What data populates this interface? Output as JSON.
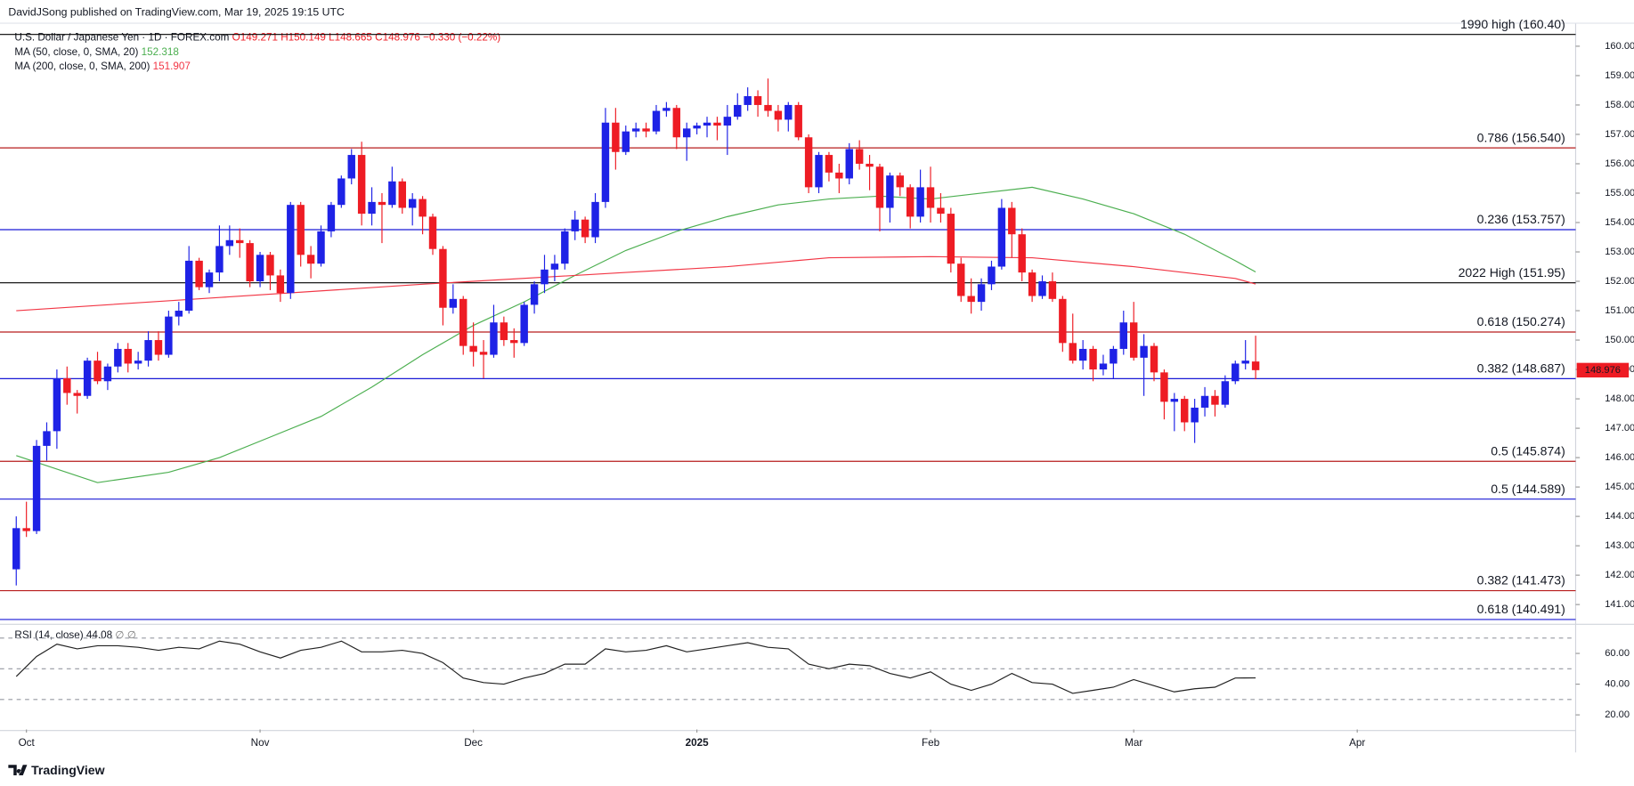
{
  "header": {
    "publisher": "DavidJSong published on TradingView.com, Mar 19, 2025 19:15 UTC"
  },
  "footer": {
    "brand": "TradingView"
  },
  "chart_data": [
    {
      "type": "candlestick",
      "title": "U.S. Dollar / Japanese Yen · 1D · FOREX.com",
      "ohlc_labels": [
        "O149.271",
        "H150.149",
        "L148.665",
        "C148.976"
      ],
      "change_label": "−0.330 (−0.22%)",
      "up_color": "#1e22e6",
      "down_color": "#ee1c24",
      "xlim": [
        -1.6,
        153.5
      ],
      "xticks": [
        {
          "value": 1,
          "label": "Oct"
        },
        {
          "value": 24,
          "label": "Nov"
        },
        {
          "value": 45,
          "label": "Dec"
        },
        {
          "value": 67,
          "label": "2025"
        },
        {
          "value": 90,
          "label": "Feb"
        },
        {
          "value": 110,
          "label": "Mar"
        },
        {
          "value": 132,
          "label": "Apr"
        }
      ],
      "ylim": [
        140.4,
        160.5
      ],
      "yticks": [
        {
          "value": 141,
          "label": "141.000"
        },
        {
          "value": 142,
          "label": "142.000"
        },
        {
          "value": 143,
          "label": "143.000"
        },
        {
          "value": 144,
          "label": "144.000"
        },
        {
          "value": 145,
          "label": "145.000"
        },
        {
          "value": 146,
          "label": "146.000"
        },
        {
          "value": 147,
          "label": "147.000"
        },
        {
          "value": 148,
          "label": "148.000"
        },
        {
          "value": 149,
          "label": "149.000"
        },
        {
          "value": 150,
          "label": "150.000"
        },
        {
          "value": 151,
          "label": "151.000"
        },
        {
          "value": 152,
          "label": "152.000"
        },
        {
          "value": 153,
          "label": "153.000"
        },
        {
          "value": 154,
          "label": "154.000"
        },
        {
          "value": 155,
          "label": "155.000"
        },
        {
          "value": 156,
          "label": "156.000"
        },
        {
          "value": 157,
          "label": "157.000"
        },
        {
          "value": 158,
          "label": "158.000"
        },
        {
          "value": 159,
          "label": "159.000"
        },
        {
          "value": 160,
          "label": "160.000"
        }
      ],
      "ohlc": [
        [
          142.2,
          144.0,
          141.65,
          143.6
        ],
        [
          143.6,
          144.5,
          143.3,
          143.5
        ],
        [
          143.5,
          146.6,
          143.4,
          146.4
        ],
        [
          146.4,
          147.2,
          145.9,
          146.9
        ],
        [
          146.9,
          149.0,
          146.3,
          148.7
        ],
        [
          148.7,
          149.1,
          147.8,
          148.2
        ],
        [
          148.2,
          148.3,
          147.5,
          148.1
        ],
        [
          148.1,
          149.4,
          148.0,
          149.3
        ],
        [
          149.3,
          149.6,
          148.5,
          148.6
        ],
        [
          148.6,
          149.2,
          148.3,
          149.1
        ],
        [
          149.1,
          149.9,
          148.9,
          149.7
        ],
        [
          149.7,
          149.9,
          148.9,
          149.2
        ],
        [
          149.2,
          149.6,
          149.0,
          149.3
        ],
        [
          149.3,
          150.3,
          149.1,
          150.0
        ],
        [
          150.0,
          150.3,
          149.3,
          149.5
        ],
        [
          149.5,
          151.0,
          149.4,
          150.8
        ],
        [
          150.8,
          151.3,
          150.5,
          151.0
        ],
        [
          151.0,
          153.2,
          150.9,
          152.7
        ],
        [
          152.7,
          152.8,
          151.7,
          151.8
        ],
        [
          151.8,
          152.4,
          151.6,
          152.3
        ],
        [
          152.3,
          153.9,
          152.0,
          153.2
        ],
        [
          153.2,
          153.9,
          152.9,
          153.4
        ],
        [
          153.4,
          153.8,
          152.8,
          153.3
        ],
        [
          153.3,
          153.4,
          151.8,
          152.0
        ],
        [
          152.0,
          153.0,
          151.8,
          152.9
        ],
        [
          152.9,
          153.0,
          151.7,
          152.2
        ],
        [
          152.2,
          152.4,
          151.3,
          151.6
        ],
        [
          151.6,
          154.7,
          151.4,
          154.6
        ],
        [
          154.6,
          154.7,
          152.5,
          152.9
        ],
        [
          152.9,
          153.2,
          152.1,
          152.6
        ],
        [
          152.6,
          153.9,
          152.5,
          153.7
        ],
        [
          153.7,
          154.7,
          153.5,
          154.6
        ],
        [
          154.6,
          155.6,
          154.5,
          155.5
        ],
        [
          155.5,
          156.5,
          155.3,
          156.3
        ],
        [
          156.3,
          156.75,
          153.9,
          154.3
        ],
        [
          154.3,
          155.2,
          153.9,
          154.7
        ],
        [
          154.7,
          155.0,
          153.3,
          154.6
        ],
        [
          154.6,
          155.9,
          154.5,
          155.4
        ],
        [
          155.4,
          155.5,
          154.3,
          154.5
        ],
        [
          154.5,
          155.0,
          153.9,
          154.8
        ],
        [
          154.8,
          154.9,
          153.6,
          154.2
        ],
        [
          154.2,
          154.3,
          152.9,
          153.1
        ],
        [
          153.1,
          153.2,
          150.5,
          151.1
        ],
        [
          151.1,
          151.9,
          150.9,
          151.4
        ],
        [
          151.4,
          151.5,
          149.5,
          149.8
        ],
        [
          149.8,
          150.6,
          149.1,
          149.6
        ],
        [
          149.6,
          150.0,
          148.7,
          149.5
        ],
        [
          149.5,
          151.2,
          149.4,
          150.6
        ],
        [
          150.6,
          150.8,
          149.8,
          150.0
        ],
        [
          150.0,
          150.4,
          149.4,
          149.9
        ],
        [
          149.9,
          151.3,
          149.8,
          151.2
        ],
        [
          151.2,
          152.0,
          150.9,
          151.9
        ],
        [
          151.9,
          152.9,
          151.6,
          152.4
        ],
        [
          152.4,
          152.9,
          152.0,
          152.6
        ],
        [
          152.6,
          153.8,
          152.4,
          153.7
        ],
        [
          153.7,
          154.4,
          153.4,
          154.1
        ],
        [
          154.1,
          154.2,
          153.3,
          153.5
        ],
        [
          153.5,
          155.0,
          153.3,
          154.7
        ],
        [
          154.7,
          157.9,
          154.5,
          157.4
        ],
        [
          157.4,
          157.9,
          155.8,
          156.4
        ],
        [
          156.4,
          157.3,
          156.3,
          157.1
        ],
        [
          157.1,
          157.4,
          156.9,
          157.2
        ],
        [
          157.2,
          157.4,
          156.9,
          157.1
        ],
        [
          157.1,
          158.0,
          157.0,
          157.8
        ],
        [
          157.8,
          158.1,
          157.6,
          157.9
        ],
        [
          157.9,
          158.0,
          156.5,
          156.9
        ],
        [
          156.9,
          157.4,
          156.1,
          157.2
        ],
        [
          157.2,
          157.4,
          157.0,
          157.3
        ],
        [
          157.3,
          157.6,
          156.9,
          157.4
        ],
        [
          157.4,
          157.6,
          156.8,
          157.3
        ],
        [
          157.3,
          158.0,
          156.3,
          157.6
        ],
        [
          157.6,
          158.4,
          157.5,
          158.0
        ],
        [
          158.0,
          158.6,
          157.8,
          158.3
        ],
        [
          158.3,
          158.5,
          157.6,
          158.0
        ],
        [
          158.0,
          158.9,
          157.6,
          157.8
        ],
        [
          157.8,
          158.0,
          157.1,
          157.5
        ],
        [
          157.5,
          158.1,
          157.1,
          158.0
        ],
        [
          158.0,
          158.1,
          156.8,
          156.9
        ],
        [
          156.9,
          157.0,
          155.0,
          155.2
        ],
        [
          155.2,
          156.4,
          155.0,
          156.3
        ],
        [
          156.3,
          156.4,
          155.4,
          155.7
        ],
        [
          155.7,
          156.0,
          155.0,
          155.5
        ],
        [
          155.5,
          156.7,
          155.3,
          156.5
        ],
        [
          156.5,
          156.8,
          155.8,
          156.0
        ],
        [
          156.0,
          156.3,
          155.1,
          155.9
        ],
        [
          155.9,
          156.0,
          153.7,
          154.5
        ],
        [
          154.5,
          155.7,
          154.0,
          155.6
        ],
        [
          155.6,
          155.7,
          154.9,
          155.2
        ],
        [
          155.2,
          155.3,
          153.8,
          154.2
        ],
        [
          154.2,
          155.8,
          154.0,
          155.2
        ],
        [
          155.2,
          155.9,
          154.0,
          154.5
        ],
        [
          154.5,
          155.0,
          154.0,
          154.3
        ],
        [
          154.3,
          154.5,
          152.3,
          152.6
        ],
        [
          152.6,
          152.8,
          151.3,
          151.5
        ],
        [
          151.5,
          152.1,
          150.9,
          151.3
        ],
        [
          151.3,
          152.1,
          151.0,
          151.9
        ],
        [
          151.9,
          152.7,
          151.7,
          152.5
        ],
        [
          152.5,
          154.8,
          152.4,
          154.5
        ],
        [
          154.5,
          154.7,
          152.8,
          153.6
        ],
        [
          153.6,
          153.8,
          152.0,
          152.3
        ],
        [
          152.3,
          152.4,
          151.3,
          151.5
        ],
        [
          151.5,
          152.2,
          151.4,
          152.0
        ],
        [
          152.0,
          152.3,
          151.3,
          151.4
        ],
        [
          151.4,
          151.5,
          149.6,
          149.9
        ],
        [
          149.9,
          150.9,
          149.2,
          149.3
        ],
        [
          149.3,
          150.0,
          149.0,
          149.7
        ],
        [
          149.7,
          149.8,
          148.6,
          149.0
        ],
        [
          149.0,
          149.5,
          148.8,
          149.2
        ],
        [
          149.2,
          149.8,
          148.7,
          149.7
        ],
        [
          149.7,
          151.0,
          149.5,
          150.6
        ],
        [
          150.6,
          151.3,
          149.3,
          149.4
        ],
        [
          149.4,
          150.2,
          148.1,
          149.8
        ],
        [
          149.8,
          149.9,
          148.6,
          148.9
        ],
        [
          148.9,
          149.0,
          147.3,
          147.9
        ],
        [
          147.9,
          148.2,
          146.9,
          148.0
        ],
        [
          148.0,
          148.1,
          146.9,
          147.2
        ],
        [
          147.2,
          148.0,
          146.5,
          147.7
        ],
        [
          147.7,
          148.4,
          147.4,
          148.1
        ],
        [
          148.1,
          148.3,
          147.4,
          147.8
        ],
        [
          147.8,
          148.8,
          147.7,
          148.6
        ],
        [
          148.6,
          149.3,
          148.5,
          149.2
        ],
        [
          149.2,
          150.0,
          149.0,
          149.3
        ],
        [
          149.271,
          150.149,
          148.665,
          148.976
        ]
      ],
      "series": [
        {
          "name": "MA (50, close, 0, SMA, 20)",
          "color": "#4caf50",
          "value_label": "152.318",
          "x": [
            0,
            8,
            15,
            20,
            25,
            30,
            35,
            40,
            45,
            50,
            55,
            60,
            65,
            70,
            75,
            80,
            85,
            90,
            95,
            100,
            105,
            110,
            115,
            120,
            122
          ],
          "values": [
            146.07,
            145.15,
            145.5,
            146.0,
            146.7,
            147.4,
            148.4,
            149.5,
            150.5,
            151.3,
            152.2,
            153.05,
            153.7,
            154.2,
            154.6,
            154.8,
            154.9,
            154.8,
            155.0,
            155.2,
            154.8,
            154.3,
            153.6,
            152.7,
            152.318
          ]
        },
        {
          "name": "MA (200, close, 0, SMA, 200)",
          "color": "#f23645",
          "value_label": "151.907",
          "x": [
            0,
            20,
            40,
            60,
            70,
            80,
            90,
            100,
            110,
            120,
            122
          ],
          "values": [
            151.0,
            151.45,
            151.9,
            152.3,
            152.5,
            152.8,
            152.84,
            152.8,
            152.5,
            152.1,
            151.907
          ]
        }
      ],
      "levels": [
        {
          "label": "1990 high (160.40)",
          "value": 160.4,
          "color": "#000000"
        },
        {
          "label": "0.786 (156.540)",
          "value": 156.54,
          "color": "#b71c1c"
        },
        {
          "label": "0.236 (153.757)",
          "value": 153.757,
          "color": "#1a1ad6"
        },
        {
          "label": "2022 High (151.95)",
          "value": 151.95,
          "color": "#000000"
        },
        {
          "label": "0.618 (150.274)",
          "value": 150.274,
          "color": "#b71c1c"
        },
        {
          "label": "0.382 (148.687)",
          "value": 148.687,
          "color": "#1a1ad6"
        },
        {
          "label": "0.5 (145.874)",
          "value": 145.874,
          "color": "#b71c1c"
        },
        {
          "label": "0.5 (144.589)",
          "value": 144.589,
          "color": "#1a1ad6"
        },
        {
          "label": "0.382 (141.473)",
          "value": 141.473,
          "color": "#b71c1c"
        },
        {
          "label": "0.618 (140.491)",
          "value": 140.491,
          "color": "#1a1ad6"
        }
      ],
      "last_price": {
        "value": 148.976,
        "label": "148.976",
        "color": "#ee1c24"
      }
    },
    {
      "type": "line",
      "title": "RSI (14, close)",
      "value_label": "44.08",
      "flags": "∅ ∅",
      "color": "#222222",
      "ylim": [
        10.5,
        78.3
      ],
      "yticks": [
        {
          "value": 60,
          "label": "60.00"
        },
        {
          "value": 40,
          "label": "40.00"
        },
        {
          "value": 20,
          "label": "20.00"
        }
      ],
      "bands": [
        70,
        50,
        30
      ],
      "x": [
        0,
        2,
        4,
        6,
        8,
        10,
        12,
        14,
        16,
        18,
        20,
        22,
        24,
        26,
        28,
        30,
        32,
        34,
        36,
        38,
        40,
        42,
        44,
        46,
        48,
        50,
        52,
        54,
        56,
        58,
        60,
        62,
        64,
        66,
        68,
        70,
        72,
        74,
        76,
        78,
        80,
        82,
        84,
        86,
        88,
        90,
        92,
        94,
        96,
        98,
        100,
        102,
        104,
        106,
        108,
        110,
        112,
        114,
        116,
        118,
        120,
        122
      ],
      "values": [
        45,
        58,
        66,
        63,
        65,
        65,
        64,
        62,
        64,
        63,
        68,
        66,
        61,
        57,
        62,
        64,
        68,
        61,
        61,
        62,
        60,
        54,
        44,
        41,
        40,
        44,
        47,
        53,
        53,
        63,
        61,
        62,
        65,
        61,
        63,
        65,
        67,
        64,
        63,
        53,
        50,
        53,
        52,
        47,
        44,
        48,
        40,
        36,
        40,
        47,
        41,
        40,
        34,
        36,
        38,
        43,
        39,
        35,
        37,
        38,
        44,
        44.08
      ]
    }
  ]
}
